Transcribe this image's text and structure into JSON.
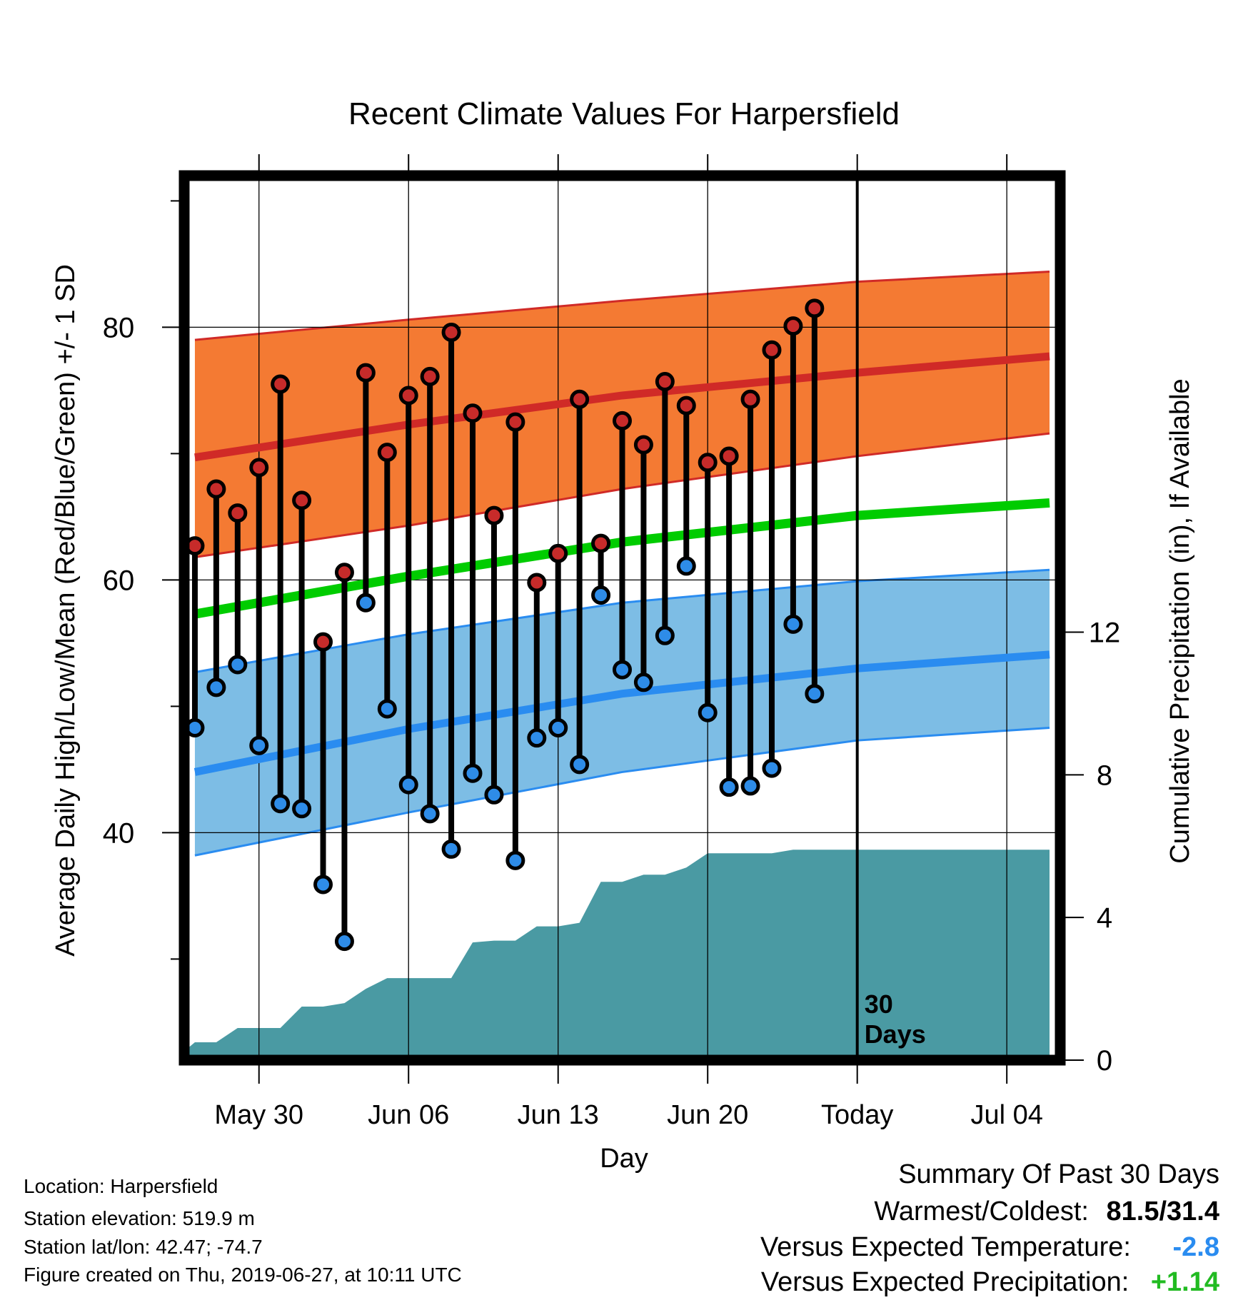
{
  "chart_data": {
    "type": "line",
    "title": "Recent Climate Values For Harpersfield",
    "xlabel": "Day",
    "ylabel_left": "Average Daily High/Low/Mean (Red/Blue/Green) +/- 1 SD",
    "ylabel_right": "Cumulative Precipitation (in), If Available",
    "x_range": [
      "2019-05-26 12:00",
      "2019-07-06 12:00"
    ],
    "ylim_left": [
      22,
      92
    ],
    "ylim_right": [
      0,
      24.8
    ],
    "x_ticks": [
      {
        "date": "2019-05-30",
        "label": "May 30"
      },
      {
        "date": "2019-06-06",
        "label": "Jun 06"
      },
      {
        "date": "2019-06-13",
        "label": "Jun 13"
      },
      {
        "date": "2019-06-20",
        "label": "Jun 20"
      },
      {
        "date": "2019-06-27",
        "label": "Today"
      },
      {
        "date": "2019-07-04",
        "label": "Jul 04"
      }
    ],
    "y_ticks_left": [
      40,
      60,
      80
    ],
    "y_minor_ticks_left": [
      30,
      50,
      70,
      90
    ],
    "y_ticks_right": [
      0,
      4,
      8,
      12
    ],
    "grid": true,
    "today_date": "2019-06-27",
    "today_label": "30\nDays",
    "colors": {
      "high_band": "#F47A33",
      "high_line": "#D02A27",
      "low_band": "#7DBDE5",
      "low_line": "#2A8CF0",
      "mean_line": "#00CC00",
      "precip": "#4A9AA3",
      "high_marker": "#C72B2A",
      "low_marker": "#2E8CE8"
    },
    "normals": [
      {
        "date": "2019-05-27",
        "high_upper": 79.0,
        "high_mean": 69.7,
        "high_lower": 61.8,
        "low_upper": 52.7,
        "low_mean": 44.8,
        "low_lower": 38.2,
        "mean": 57.3
      },
      {
        "date": "2019-06-06",
        "high_upper": 80.6,
        "high_mean": 72.3,
        "high_lower": 64.3,
        "low_upper": 55.7,
        "low_mean": 48.2,
        "low_lower": 41.6,
        "mean": 60.3
      },
      {
        "date": "2019-06-16",
        "high_upper": 82.1,
        "high_mean": 74.6,
        "high_lower": 67.2,
        "low_upper": 58.2,
        "low_mean": 51.0,
        "low_lower": 44.8,
        "mean": 63.0
      },
      {
        "date": "2019-06-27",
        "high_upper": 83.6,
        "high_mean": 76.4,
        "high_lower": 69.8,
        "low_upper": 59.9,
        "low_mean": 53.0,
        "low_lower": 47.3,
        "mean": 65.1
      },
      {
        "date": "2019-07-06",
        "high_upper": 84.4,
        "high_mean": 77.7,
        "high_lower": 71.6,
        "low_upper": 60.8,
        "low_mean": 54.1,
        "low_lower": 48.3,
        "mean": 66.1
      }
    ],
    "daily": [
      {
        "date": "2019-05-27",
        "high": 62.7,
        "low": 48.3
      },
      {
        "date": "2019-05-28",
        "high": 67.2,
        "low": 51.5
      },
      {
        "date": "2019-05-29",
        "high": 65.3,
        "low": 53.3
      },
      {
        "date": "2019-05-30",
        "high": 68.9,
        "low": 46.9
      },
      {
        "date": "2019-05-31",
        "high": 75.5,
        "low": 42.3
      },
      {
        "date": "2019-06-01",
        "high": 66.3,
        "low": 41.9
      },
      {
        "date": "2019-06-02",
        "high": 55.1,
        "low": 35.9
      },
      {
        "date": "2019-06-03",
        "high": 60.6,
        "low": 31.4
      },
      {
        "date": "2019-06-04",
        "high": 76.4,
        "low": 58.2
      },
      {
        "date": "2019-06-05",
        "high": 70.1,
        "low": 49.8
      },
      {
        "date": "2019-06-06",
        "high": 74.6,
        "low": 43.8
      },
      {
        "date": "2019-06-07",
        "high": 76.1,
        "low": 41.5
      },
      {
        "date": "2019-06-08",
        "high": 79.6,
        "low": 38.7
      },
      {
        "date": "2019-06-09",
        "high": 73.2,
        "low": 44.7
      },
      {
        "date": "2019-06-10",
        "high": 65.1,
        "low": 43.0
      },
      {
        "date": "2019-06-11",
        "high": 72.5,
        "low": 37.8
      },
      {
        "date": "2019-06-12",
        "high": 59.8,
        "low": 47.5
      },
      {
        "date": "2019-06-13",
        "high": 62.1,
        "low": 48.3
      },
      {
        "date": "2019-06-14",
        "high": 74.3,
        "low": 45.4
      },
      {
        "date": "2019-06-15",
        "high": 62.9,
        "low": 58.8
      },
      {
        "date": "2019-06-16",
        "high": 72.6,
        "low": 52.9
      },
      {
        "date": "2019-06-17",
        "high": 70.7,
        "low": 51.9
      },
      {
        "date": "2019-06-18",
        "high": 75.7,
        "low": 55.6
      },
      {
        "date": "2019-06-19",
        "high": 73.8,
        "low": 61.1
      },
      {
        "date": "2019-06-20",
        "high": 69.3,
        "low": 49.5
      },
      {
        "date": "2019-06-21",
        "high": 69.8,
        "low": 43.6
      },
      {
        "date": "2019-06-22",
        "high": 74.3,
        "low": 43.7
      },
      {
        "date": "2019-06-23",
        "high": 78.2,
        "low": 45.1
      },
      {
        "date": "2019-06-24",
        "high": 80.1,
        "low": 56.5
      },
      {
        "date": "2019-06-25",
        "high": 81.5,
        "low": 51.0
      }
    ],
    "cumulative_precip": [
      {
        "date": "2019-05-26",
        "value": 0.0
      },
      {
        "date": "2019-05-27",
        "value": 0.5
      },
      {
        "date": "2019-05-28",
        "value": 0.5
      },
      {
        "date": "2019-05-29",
        "value": 0.9
      },
      {
        "date": "2019-05-30",
        "value": 0.9
      },
      {
        "date": "2019-05-31",
        "value": 0.9
      },
      {
        "date": "2019-06-01",
        "value": 1.5
      },
      {
        "date": "2019-06-02",
        "value": 1.5
      },
      {
        "date": "2019-06-03",
        "value": 1.6
      },
      {
        "date": "2019-06-04",
        "value": 2.0
      },
      {
        "date": "2019-06-05",
        "value": 2.3
      },
      {
        "date": "2019-06-06",
        "value": 2.3
      },
      {
        "date": "2019-06-07",
        "value": 2.3
      },
      {
        "date": "2019-06-08",
        "value": 2.3
      },
      {
        "date": "2019-06-09",
        "value": 3.3
      },
      {
        "date": "2019-06-10",
        "value": 3.35
      },
      {
        "date": "2019-06-11",
        "value": 3.35
      },
      {
        "date": "2019-06-12",
        "value": 3.75
      },
      {
        "date": "2019-06-13",
        "value": 3.75
      },
      {
        "date": "2019-06-14",
        "value": 3.85
      },
      {
        "date": "2019-06-15",
        "value": 5.0
      },
      {
        "date": "2019-06-16",
        "value": 5.0
      },
      {
        "date": "2019-06-17",
        "value": 5.2
      },
      {
        "date": "2019-06-18",
        "value": 5.2
      },
      {
        "date": "2019-06-19",
        "value": 5.4
      },
      {
        "date": "2019-06-20",
        "value": 5.8
      },
      {
        "date": "2019-06-21",
        "value": 5.8
      },
      {
        "date": "2019-06-22",
        "value": 5.8
      },
      {
        "date": "2019-06-23",
        "value": 5.8
      },
      {
        "date": "2019-06-24",
        "value": 5.9
      },
      {
        "date": "2019-06-26",
        "value": 5.9
      },
      {
        "date": "2019-07-06",
        "value": 5.9
      }
    ]
  },
  "info": {
    "location": "Location: Harpersfield",
    "elevation": "Station elevation: 519.9 m",
    "latlon": "Station lat/lon: 42.47; -74.7",
    "created": "Figure created on Thu, 2019-06-27, at 10:11 UTC"
  },
  "summary": {
    "title": "Summary Of Past 30 Days",
    "warm_cold_label": "Warmest/Coldest:",
    "warm_cold_value": "81.5/31.4",
    "temp_label": "Versus Expected Temperature:",
    "temp_value": "-2.8",
    "temp_color": "#2A8CF0",
    "precip_label": "Versus Expected Precipitation:",
    "precip_value": "+1.14",
    "precip_color": "#22BB22"
  }
}
